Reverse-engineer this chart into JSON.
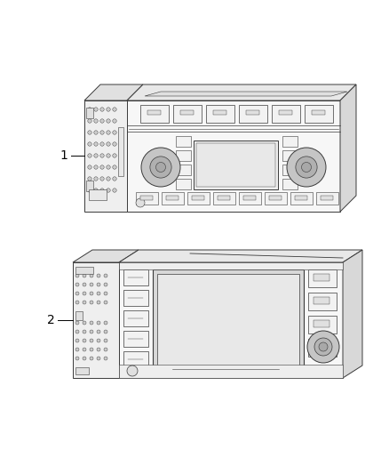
{
  "bg_color": "#ffffff",
  "fig_width": 4.38,
  "fig_height": 5.33,
  "dpi": 100,
  "label1_text": "1",
  "label2_text": "2",
  "line_color": "#3a3a3a",
  "fill_front": "#f7f7f7",
  "fill_top": "#e8e8e8",
  "fill_side": "#d8d8d8",
  "fill_left": "#efefef",
  "fill_left_top": "#e0e0e0",
  "fill_display": "#f0f0f0",
  "fill_knob": "#c8c8c8",
  "fill_button": "#f2f2f2",
  "fill_grille": "#e0e0e0",
  "lw_main": 0.7,
  "lw_detail": 0.4
}
